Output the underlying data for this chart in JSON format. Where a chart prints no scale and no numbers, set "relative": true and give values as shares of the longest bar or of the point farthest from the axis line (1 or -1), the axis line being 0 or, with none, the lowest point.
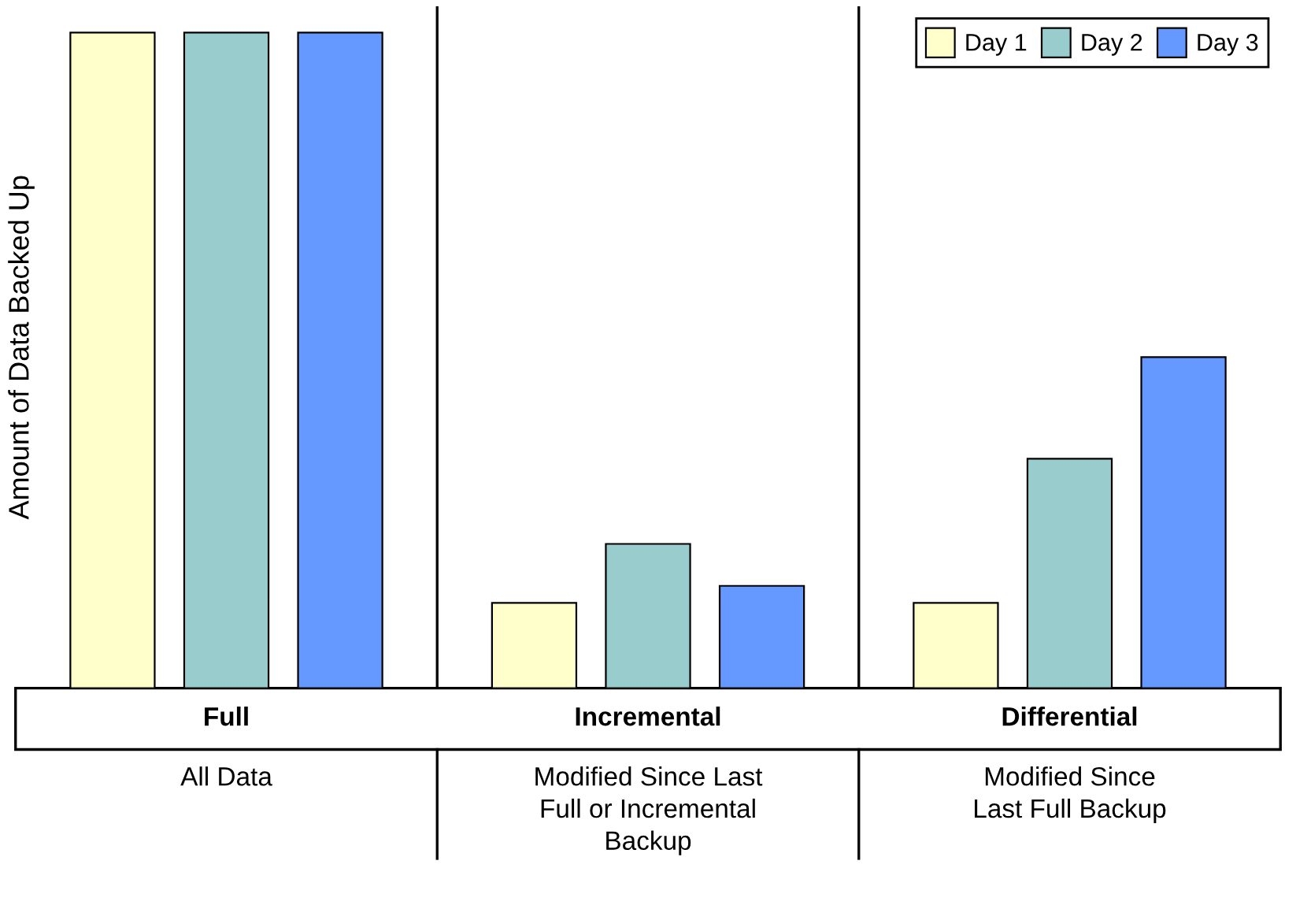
{
  "chart_data": {
    "type": "bar",
    "relative": true,
    "ylabel": "Amount of Data Backed Up",
    "categories": [
      "Full",
      "Incremental",
      "Differential"
    ],
    "series": [
      {
        "name": "Day 1",
        "color": "#ffffcc",
        "values": [
          1,
          0.13,
          0.13
        ]
      },
      {
        "name": "Day 2",
        "color": "#99cccc",
        "values": [
          1,
          0.22,
          0.35
        ]
      },
      {
        "name": "Day 3",
        "color": "#6699ff",
        "values": [
          1,
          0.156,
          0.505
        ]
      }
    ],
    "annotations": [
      "All Data",
      "Modified Since Last Full or Incremental Backup",
      "Modified Since Last Full Backup"
    ],
    "legend": "top right"
  }
}
